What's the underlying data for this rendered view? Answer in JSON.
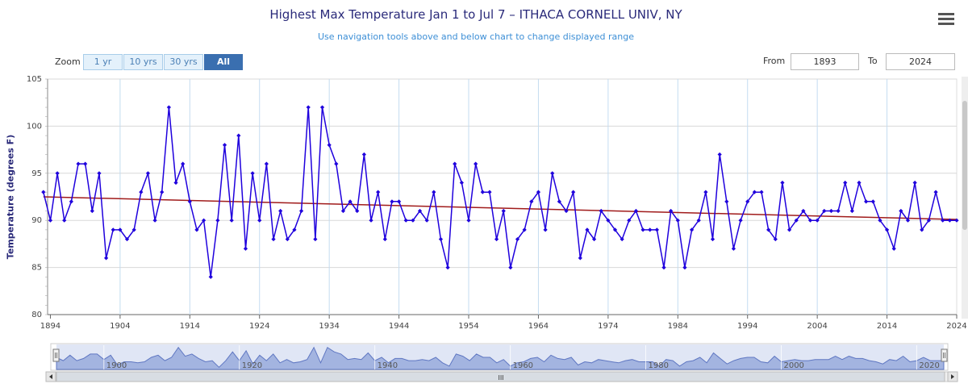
{
  "chart_data": {
    "type": "line",
    "title": "Highest Max Temperature Jan 1 to Jul 7 – ITHACA CORNELL UNIV, NY",
    "subtitle": "Use navigation tools above and below chart to change displayed range",
    "ylabel": "Temperature (degrees F)",
    "xlabel": "",
    "ylim": [
      80,
      105
    ],
    "yticks": [
      80,
      85,
      90,
      95,
      100,
      105
    ],
    "xlim": [
      1893.6,
      2024
    ],
    "xticks": [
      1894,
      1904,
      1914,
      1924,
      1934,
      1944,
      1954,
      1964,
      1974,
      1984,
      1994,
      2004,
      2014,
      2024
    ],
    "grid": true,
    "series": [
      {
        "name": "Highest Max Temperature",
        "color": "#1f00dd",
        "x": [
          1893,
          1894,
          1895,
          1896,
          1897,
          1898,
          1899,
          1900,
          1901,
          1902,
          1903,
          1904,
          1905,
          1906,
          1907,
          1908,
          1909,
          1910,
          1911,
          1912,
          1913,
          1914,
          1915,
          1916,
          1917,
          1918,
          1919,
          1920,
          1921,
          1922,
          1923,
          1924,
          1925,
          1926,
          1927,
          1928,
          1929,
          1930,
          1931,
          1932,
          1933,
          1934,
          1935,
          1936,
          1937,
          1938,
          1939,
          1940,
          1941,
          1942,
          1943,
          1944,
          1945,
          1946,
          1947,
          1948,
          1949,
          1950,
          1951,
          1952,
          1953,
          1954,
          1955,
          1956,
          1957,
          1958,
          1959,
          1960,
          1961,
          1962,
          1963,
          1964,
          1965,
          1966,
          1967,
          1968,
          1969,
          1970,
          1971,
          1972,
          1973,
          1974,
          1975,
          1976,
          1977,
          1978,
          1979,
          1980,
          1981,
          1982,
          1983,
          1984,
          1985,
          1986,
          1987,
          1988,
          1989,
          1990,
          1991,
          1992,
          1993,
          1994,
          1995,
          1996,
          1997,
          1998,
          1999,
          2000,
          2001,
          2002,
          2003,
          2004,
          2005,
          2006,
          2007,
          2008,
          2009,
          2010,
          2011,
          2012,
          2013,
          2014,
          2015,
          2016,
          2017,
          2018,
          2019,
          2020,
          2021,
          2022,
          2023,
          2024
        ],
        "values": [
          93,
          90,
          95,
          90,
          92,
          96,
          96,
          91,
          95,
          86,
          89,
          89,
          88,
          89,
          93,
          95,
          90,
          93,
          102,
          94,
          96,
          92,
          89,
          90,
          84,
          90,
          98,
          90,
          99,
          87,
          95,
          90,
          96,
          88,
          91,
          88,
          89,
          91,
          102,
          88,
          102,
          98,
          96,
          91,
          92,
          91,
          97,
          90,
          93,
          88,
          92,
          92,
          90,
          90,
          91,
          90,
          93,
          88,
          85,
          96,
          94,
          90,
          96,
          93,
          93,
          88,
          91,
          85,
          88,
          89,
          92,
          93,
          89,
          95,
          92,
          91,
          93,
          86,
          89,
          88,
          91,
          90,
          89,
          88,
          90,
          91,
          89,
          89,
          89,
          85,
          91,
          90,
          85,
          89,
          90,
          93,
          88,
          97,
          92,
          87,
          90,
          92,
          93,
          93,
          89,
          88,
          94,
          89,
          90,
          91,
          90,
          90,
          91,
          91,
          91,
          94,
          91,
          94,
          92,
          92,
          90,
          89,
          87,
          91,
          90,
          94,
          89,
          90,
          93,
          90,
          90,
          90
        ]
      },
      {
        "name": "Trend",
        "color": "#a01b1b",
        "x": [
          1893,
          2024
        ],
        "values": [
          92.5,
          90.1
        ]
      }
    ]
  },
  "controls": {
    "zoom_label": "Zoom",
    "zoom_buttons": [
      "1 yr",
      "10 yrs",
      "30 yrs",
      "All"
    ],
    "active_zoom": "All",
    "from_label": "From",
    "from_value": "1893",
    "to_label": "To",
    "to_value": "2024"
  },
  "navigator": {
    "ticks": [
      1900,
      1920,
      1940,
      1960,
      1980,
      2000,
      2020
    ],
    "scroll_grip": "III"
  },
  "colors": {
    "line": "#1f00dd",
    "trend": "#a01b1b",
    "navigator_fill": "#8fa3d8",
    "title": "#2a2a7a"
  }
}
